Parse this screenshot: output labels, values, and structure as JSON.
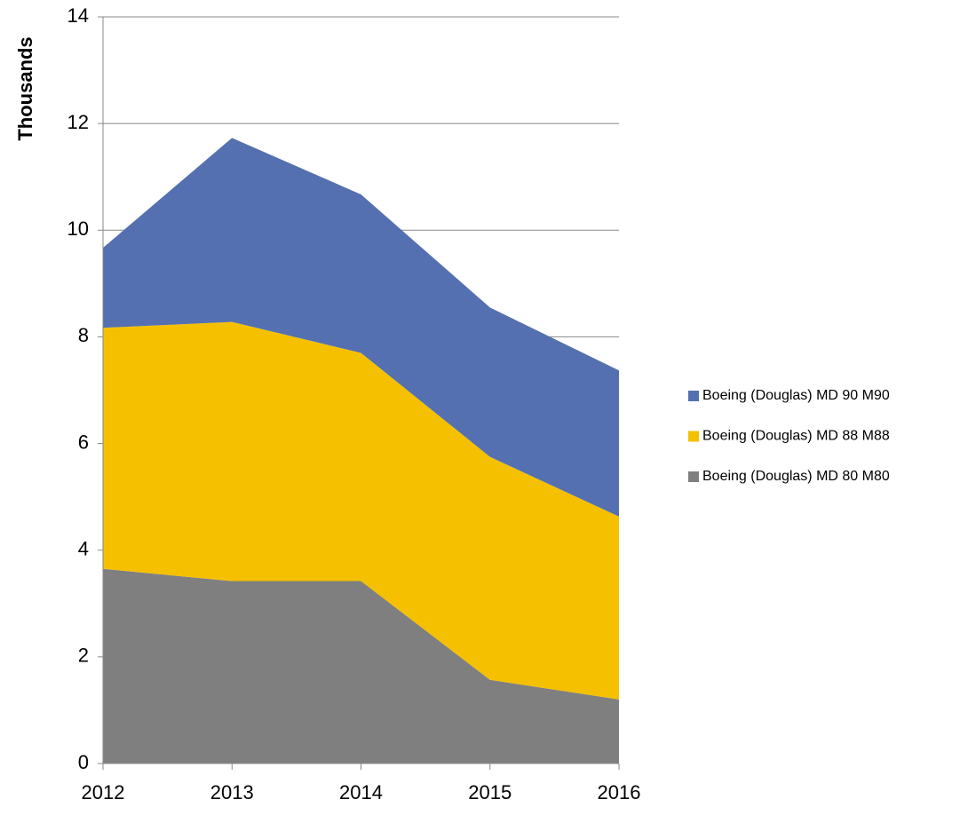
{
  "chart_data": {
    "type": "stacked_area",
    "y_label": "Thousands",
    "x": [
      2012,
      2013,
      2014,
      2015,
      2016
    ],
    "xlim": [
      2012,
      2016
    ],
    "xticks": [
      2012,
      2013,
      2014,
      2015,
      2016
    ],
    "ylim": [
      0,
      14
    ],
    "yticks": [
      0,
      2,
      4,
      6,
      8,
      10,
      12,
      14
    ],
    "grid": true,
    "legend": "right",
    "series": [
      {
        "name": "Boeing (Douglas) MD 80 M80",
        "color": "#7f7f7f",
        "values": [
          3.65,
          3.42,
          3.42,
          1.57,
          1.2
        ]
      },
      {
        "name": "Boeing (Douglas) MD 88 M88",
        "color": "#f4c000",
        "values": [
          4.52,
          4.86,
          4.28,
          4.18,
          3.43
        ]
      },
      {
        "name": "Boeing (Douglas) MD 90 M90",
        "color": "#5470b0",
        "values": [
          1.5,
          3.45,
          2.97,
          2.8,
          2.74
        ]
      }
    ]
  }
}
